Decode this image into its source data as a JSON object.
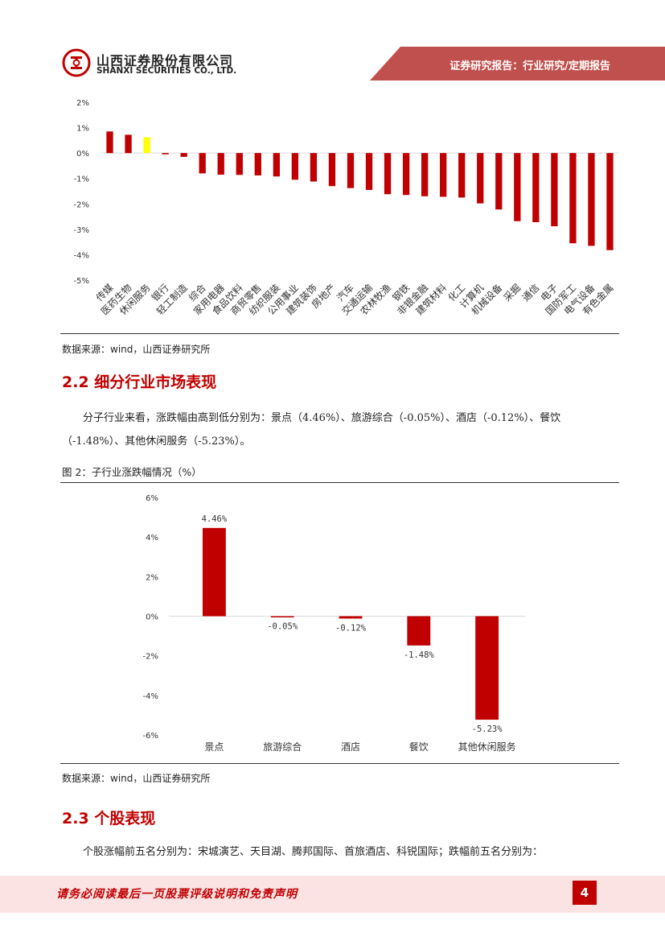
{
  "header": {
    "brand_cn": "山西证券股份有限公司",
    "brand_en": "SHANXI SECURITIES CO., LTD.",
    "report_type": "证券研究报告：行业研究/定期报告"
  },
  "figure1": {
    "source": "数据来源：wind，山西证券研究所"
  },
  "section_2_2": {
    "title": "2.2 细分行业市场表现",
    "paragraph": "分子行业来看，涨跌幅由高到低分别为：景点（4.46%）、旅游综合（-0.05%）、酒店（-0.12%）、餐饮（-1.48%）、其他休闲服务（-5.23%）。"
  },
  "figure2": {
    "caption": "图 2：子行业涨跌幅情况（%）",
    "source": "数据来源：wind，山西证券研究所"
  },
  "section_2_3": {
    "title": "2.3 个股表现",
    "paragraph": "个股涨幅前五名分别为：宋城演艺、天目湖、腾邦国际、首旅酒店、科锐国际；跌幅前五名分别为："
  },
  "footer": {
    "disclaimer": "请务必阅读最后一页股票评级说明和免责声明",
    "page_number": "4"
  },
  "chart_data": [
    {
      "type": "bar",
      "title": "",
      "categories": [
        "传媒",
        "医药生物",
        "休闲服务",
        "银行",
        "轻工制造",
        "综合",
        "家用电器",
        "食品饮料",
        "商贸零售",
        "纺织服装",
        "公用事业",
        "建筑装饰",
        "房地产",
        "汽车",
        "交通运输",
        "农林牧渔",
        "钢铁",
        "非银金融",
        "建筑材料",
        "化工",
        "计算机",
        "机械设备",
        "采掘",
        "通信",
        "电子",
        "国防军工",
        "电气设备",
        "有色金属"
      ],
      "values": [
        0.85,
        0.72,
        0.62,
        -0.05,
        -0.15,
        -0.8,
        -0.85,
        -0.86,
        -0.88,
        -0.92,
        -1.05,
        -1.12,
        -1.3,
        -1.38,
        -1.45,
        -1.62,
        -1.65,
        -1.7,
        -1.72,
        -1.75,
        -1.98,
        -2.22,
        -2.68,
        -2.72,
        -2.88,
        -3.55,
        -3.65,
        -3.82
      ],
      "highlight_index": 2,
      "highlight_color": "#ffff00",
      "bar_color": "#c00000",
      "yticks": [
        "2%",
        "1%",
        "0%",
        "-1%",
        "-2%",
        "-3%",
        "-4%",
        "-5%"
      ],
      "ylim": [
        -5,
        2
      ]
    },
    {
      "type": "bar",
      "title": "",
      "categories": [
        "景点",
        "旅游综合",
        "酒店",
        "餐饮",
        "其他休闲服务"
      ],
      "values": [
        4.46,
        -0.05,
        -0.12,
        -1.48,
        -5.23
      ],
      "data_labels": [
        "4.46%",
        "-0.05%",
        "-0.12%",
        "-1.48%",
        "-5.23%"
      ],
      "bar_color": "#c00000",
      "yticks": [
        "6%",
        "4%",
        "2%",
        "0%",
        "-2%",
        "-4%",
        "-6%"
      ],
      "ylim": [
        -6,
        6
      ]
    }
  ],
  "colors": {
    "brand_red": "#c00000",
    "band_red": "#c0504d",
    "footer_pink": "#fbe3e4"
  }
}
